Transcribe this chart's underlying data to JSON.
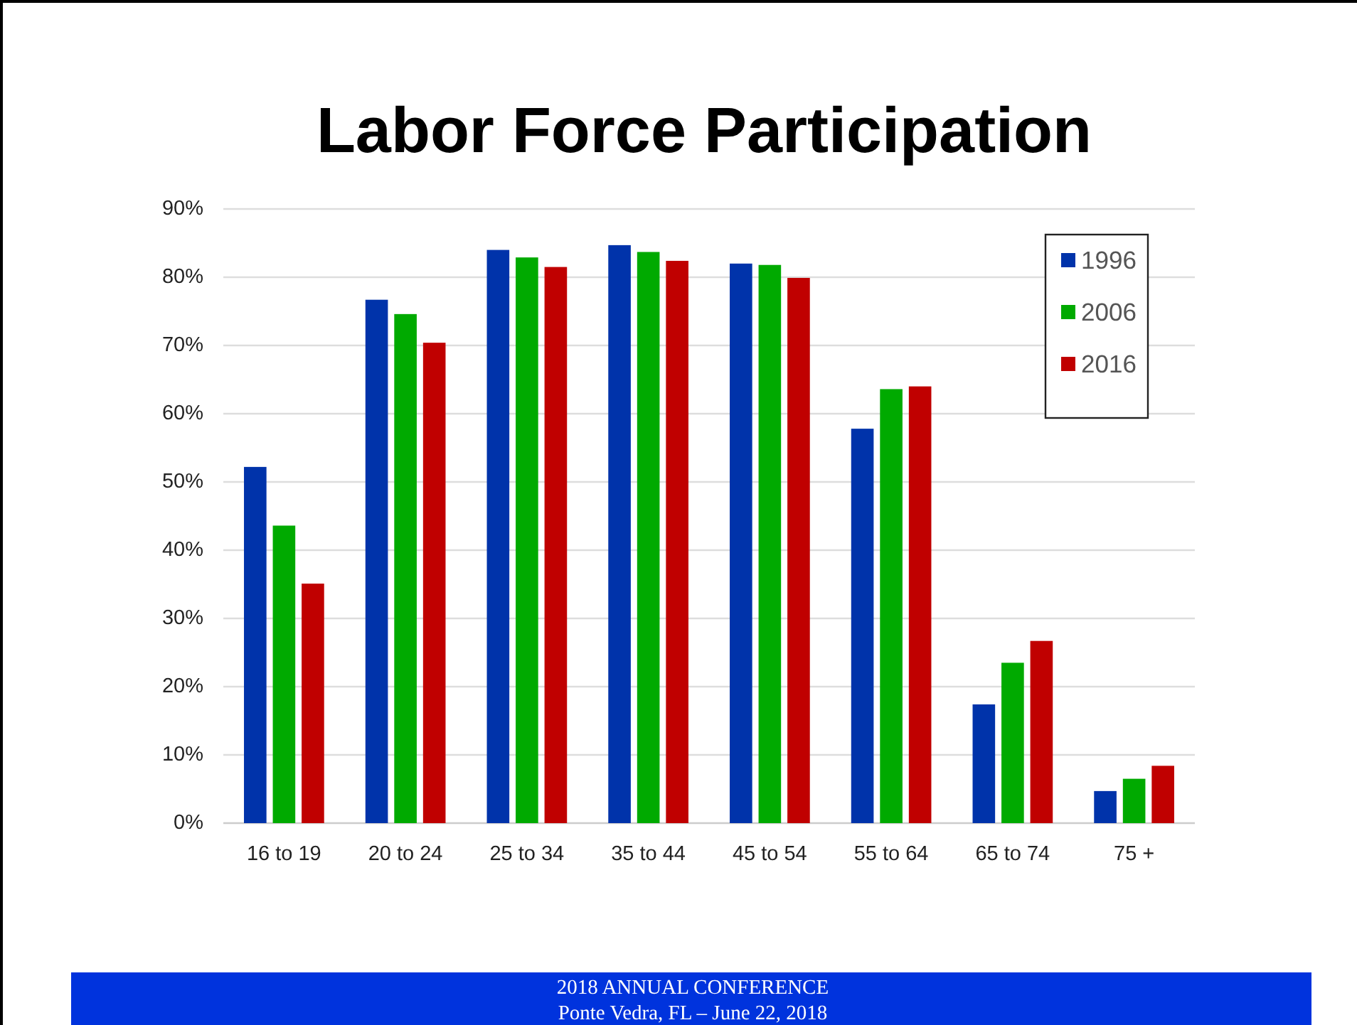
{
  "chart_data": {
    "type": "bar",
    "title": "Labor Force Participation",
    "categories": [
      "16 to 19",
      "20 to 24",
      "25 to 34",
      "35 to 44",
      "45 to 54",
      "55 to 64",
      "65 to 74",
      "75 +"
    ],
    "series": [
      {
        "name": "1996",
        "color": "#0033aa",
        "values": [
          52.2,
          76.7,
          84.0,
          84.7,
          82.0,
          57.8,
          17.4,
          4.7
        ]
      },
      {
        "name": "2006",
        "color": "#00aa00",
        "values": [
          43.6,
          74.6,
          82.9,
          83.7,
          81.8,
          63.6,
          23.5,
          6.5
        ]
      },
      {
        "name": "2016",
        "color": "#c00000",
        "values": [
          35.1,
          70.4,
          81.5,
          82.4,
          79.9,
          64.0,
          26.7,
          8.4
        ]
      }
    ],
    "ylim": [
      0,
      90
    ],
    "yticks": [
      {
        "value": 0,
        "label": "0%"
      },
      {
        "value": 10,
        "label": "10%"
      },
      {
        "value": 20,
        "label": "20%"
      },
      {
        "value": 30,
        "label": "30%"
      },
      {
        "value": 40,
        "label": "40%"
      },
      {
        "value": 50,
        "label": "50%"
      },
      {
        "value": 60,
        "label": "60%"
      },
      {
        "value": 70,
        "label": "70%"
      },
      {
        "value": 80,
        "label": "80%"
      },
      {
        "value": 90,
        "label": "90%"
      }
    ],
    "grid": "y",
    "legend": "top right",
    "annotations": [
      "2018 ANNUAL CONFERENCE",
      "Ponte Vedra, FL – June 22, 2018"
    ]
  }
}
